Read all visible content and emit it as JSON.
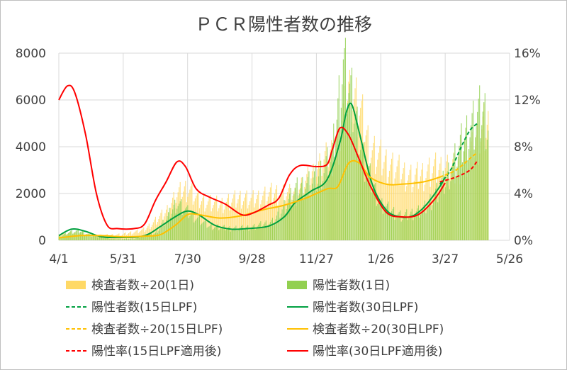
{
  "chart_data": {
    "type": "bar+line",
    "title": "ＰＣＲ陽性者数の推移",
    "x_ticks": [
      "4/1",
      "5/31",
      "7/30",
      "9/28",
      "11/27",
      "1/26",
      "3/27",
      "5/26"
    ],
    "y_left_ticks": [
      "0",
      "2000",
      "4000",
      "6000",
      "8000"
    ],
    "y_right_ticks": [
      "0%",
      "4%",
      "8%",
      "12%",
      "16%"
    ],
    "ylim_left": [
      0,
      8000
    ],
    "ylim_right": [
      0,
      16
    ],
    "x_range_days": [
      0,
      420
    ],
    "series": [
      {
        "name": "検査者数÷20(1日)",
        "kind": "bar",
        "color": "#ffd966",
        "points": [
          [
            0,
            300
          ],
          [
            20,
            280
          ],
          [
            40,
            200
          ],
          [
            60,
            250
          ],
          [
            80,
            450
          ],
          [
            100,
            1200
          ],
          [
            110,
            1900
          ],
          [
            120,
            2200
          ],
          [
            130,
            1700
          ],
          [
            150,
            1500
          ],
          [
            170,
            1800
          ],
          [
            180,
            1700
          ],
          [
            200,
            2000
          ],
          [
            220,
            1900
          ],
          [
            240,
            2900
          ],
          [
            260,
            3900
          ],
          [
            270,
            6200
          ],
          [
            280,
            5500
          ],
          [
            290,
            3800
          ],
          [
            310,
            3100
          ],
          [
            330,
            2600
          ],
          [
            350,
            3000
          ],
          [
            370,
            3000
          ],
          [
            385,
            3700
          ],
          [
            400,
            5200
          ]
        ]
      },
      {
        "name": "陽性者数(1日)",
        "kind": "bar",
        "color": "#92d050",
        "points": [
          [
            0,
            150
          ],
          [
            10,
            350
          ],
          [
            20,
            400
          ],
          [
            30,
            200
          ],
          [
            50,
            50
          ],
          [
            70,
            70
          ],
          [
            90,
            300
          ],
          [
            100,
            900
          ],
          [
            110,
            1600
          ],
          [
            120,
            1200
          ],
          [
            140,
            600
          ],
          [
            160,
            500
          ],
          [
            180,
            550
          ],
          [
            200,
            800
          ],
          [
            220,
            2100
          ],
          [
            240,
            2600
          ],
          [
            255,
            3600
          ],
          [
            265,
            7500
          ],
          [
            275,
            5500
          ],
          [
            285,
            3200
          ],
          [
            300,
            1500
          ],
          [
            320,
            1000
          ],
          [
            340,
            1300
          ],
          [
            360,
            2500
          ],
          [
            380,
            4500
          ],
          [
            395,
            5500
          ],
          [
            400,
            5000
          ]
        ]
      },
      {
        "name": "陽性者数(15日LPF)",
        "kind": "line",
        "axis": "left",
        "color": "#00a040",
        "dash": true,
        "points": [
          [
            355,
            2400
          ],
          [
            365,
            3000
          ],
          [
            375,
            4000
          ],
          [
            383,
            4700
          ],
          [
            390,
            5000
          ]
        ]
      },
      {
        "name": "陽性者数(30日LPF)",
        "kind": "line",
        "axis": "left",
        "color": "#00a040",
        "dash": false,
        "points": [
          [
            0,
            200
          ],
          [
            12,
            480
          ],
          [
            25,
            380
          ],
          [
            40,
            150
          ],
          [
            60,
            120
          ],
          [
            80,
            200
          ],
          [
            95,
            600
          ],
          [
            110,
            1050
          ],
          [
            120,
            1250
          ],
          [
            130,
            1100
          ],
          [
            145,
            650
          ],
          [
            160,
            480
          ],
          [
            175,
            500
          ],
          [
            195,
            600
          ],
          [
            210,
            1000
          ],
          [
            220,
            1600
          ],
          [
            235,
            2100
          ],
          [
            250,
            2600
          ],
          [
            262,
            4200
          ],
          [
            268,
            5500
          ],
          [
            273,
            5800
          ],
          [
            280,
            4600
          ],
          [
            292,
            2400
          ],
          [
            305,
            1300
          ],
          [
            318,
            1000
          ],
          [
            330,
            1050
          ],
          [
            342,
            1500
          ],
          [
            355,
            2300
          ],
          [
            360,
            2700
          ]
        ]
      },
      {
        "name": "検査者数÷20(15日LPF)",
        "kind": "line",
        "axis": "left",
        "color": "#ffc000",
        "dash": true,
        "points": [
          [
            355,
            2700
          ],
          [
            370,
            3000
          ],
          [
            383,
            3500
          ],
          [
            390,
            3750
          ]
        ]
      },
      {
        "name": "検査者数÷20(30日LPF)",
        "kind": "line",
        "axis": "left",
        "color": "#ffc000",
        "dash": false,
        "points": [
          [
            0,
            100
          ],
          [
            20,
            200
          ],
          [
            40,
            200
          ],
          [
            60,
            150
          ],
          [
            80,
            180
          ],
          [
            95,
            250
          ],
          [
            110,
            700
          ],
          [
            120,
            1100
          ],
          [
            130,
            1100
          ],
          [
            150,
            950
          ],
          [
            170,
            1050
          ],
          [
            190,
            1300
          ],
          [
            210,
            1500
          ],
          [
            230,
            1800
          ],
          [
            250,
            2200
          ],
          [
            260,
            2300
          ],
          [
            270,
            3300
          ],
          [
            280,
            3300
          ],
          [
            290,
            2700
          ],
          [
            305,
            2400
          ],
          [
            320,
            2400
          ],
          [
            340,
            2500
          ],
          [
            355,
            2700
          ]
        ]
      },
      {
        "name": "陽性率(15日LPF適用後)",
        "kind": "line",
        "axis": "right",
        "color": "#ff0000",
        "dash": true,
        "points": [
          [
            355,
            5.0
          ],
          [
            370,
            5.4
          ],
          [
            383,
            6.0
          ],
          [
            390,
            6.8
          ]
        ]
      },
      {
        "name": "陽性率(30日LPF適用後)",
        "kind": "line",
        "axis": "right",
        "color": "#ff0000",
        "dash": false,
        "points": [
          [
            0,
            12.0
          ],
          [
            8,
            13.2
          ],
          [
            15,
            12.6
          ],
          [
            25,
            9.0
          ],
          [
            35,
            4.0
          ],
          [
            45,
            1.3
          ],
          [
            55,
            1.0
          ],
          [
            70,
            1.0
          ],
          [
            80,
            1.4
          ],
          [
            90,
            3.4
          ],
          [
            100,
            5.0
          ],
          [
            110,
            6.7
          ],
          [
            118,
            6.3
          ],
          [
            128,
            4.4
          ],
          [
            140,
            3.7
          ],
          [
            155,
            3.1
          ],
          [
            170,
            2.2
          ],
          [
            180,
            2.3
          ],
          [
            195,
            3.0
          ],
          [
            205,
            3.6
          ],
          [
            215,
            5.6
          ],
          [
            225,
            6.4
          ],
          [
            240,
            6.3
          ],
          [
            250,
            6.5
          ],
          [
            255,
            7.8
          ],
          [
            262,
            9.6
          ],
          [
            270,
            9.0
          ],
          [
            280,
            6.9
          ],
          [
            290,
            4.7
          ],
          [
            305,
            2.4
          ],
          [
            320,
            2.0
          ],
          [
            335,
            2.2
          ],
          [
            350,
            3.5
          ],
          [
            360,
            4.9
          ]
        ]
      }
    ],
    "legend_position": "bottom"
  }
}
